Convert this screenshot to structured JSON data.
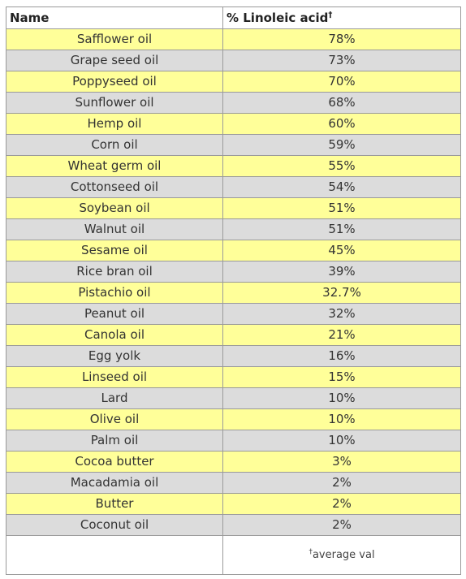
{
  "table": {
    "headers": {
      "name": "Name",
      "value": "% Linoleic acid",
      "value_mark": "†"
    },
    "row_colors": {
      "odd": "#ffff99",
      "even": "#dcdcdc"
    },
    "rows": [
      {
        "name": "Safflower oil",
        "value": "78%"
      },
      {
        "name": "Grape seed oil",
        "value": "73%"
      },
      {
        "name": "Poppyseed oil",
        "value": "70%"
      },
      {
        "name": "Sunflower oil",
        "value": "68%"
      },
      {
        "name": "Hemp oil",
        "value": "60%"
      },
      {
        "name": "Corn oil",
        "value": "59%"
      },
      {
        "name": "Wheat germ oil",
        "value": "55%"
      },
      {
        "name": "Cottonseed oil",
        "value": "54%"
      },
      {
        "name": "Soybean oil",
        "value": "51%"
      },
      {
        "name": "Walnut oil",
        "value": "51%"
      },
      {
        "name": "Sesame oil",
        "value": "45%"
      },
      {
        "name": "Rice bran oil",
        "value": "39%"
      },
      {
        "name": "Pistachio oil",
        "value": "32.7%"
      },
      {
        "name": "Peanut oil",
        "value": "32%"
      },
      {
        "name": "Canola oil",
        "value": "21%"
      },
      {
        "name": "Egg yolk",
        "value": "16%"
      },
      {
        "name": "Linseed oil",
        "value": "15%"
      },
      {
        "name": "Lard",
        "value": "10%"
      },
      {
        "name": "Olive oil",
        "value": "10%"
      },
      {
        "name": "Palm oil",
        "value": "10%"
      },
      {
        "name": "Cocoa butter",
        "value": "3%"
      },
      {
        "name": "Macadamia oil",
        "value": "2%"
      },
      {
        "name": "Butter",
        "value": "2%"
      },
      {
        "name": "Coconut oil",
        "value": "2%"
      }
    ],
    "footer": {
      "mark": "†",
      "note": "average val"
    }
  }
}
